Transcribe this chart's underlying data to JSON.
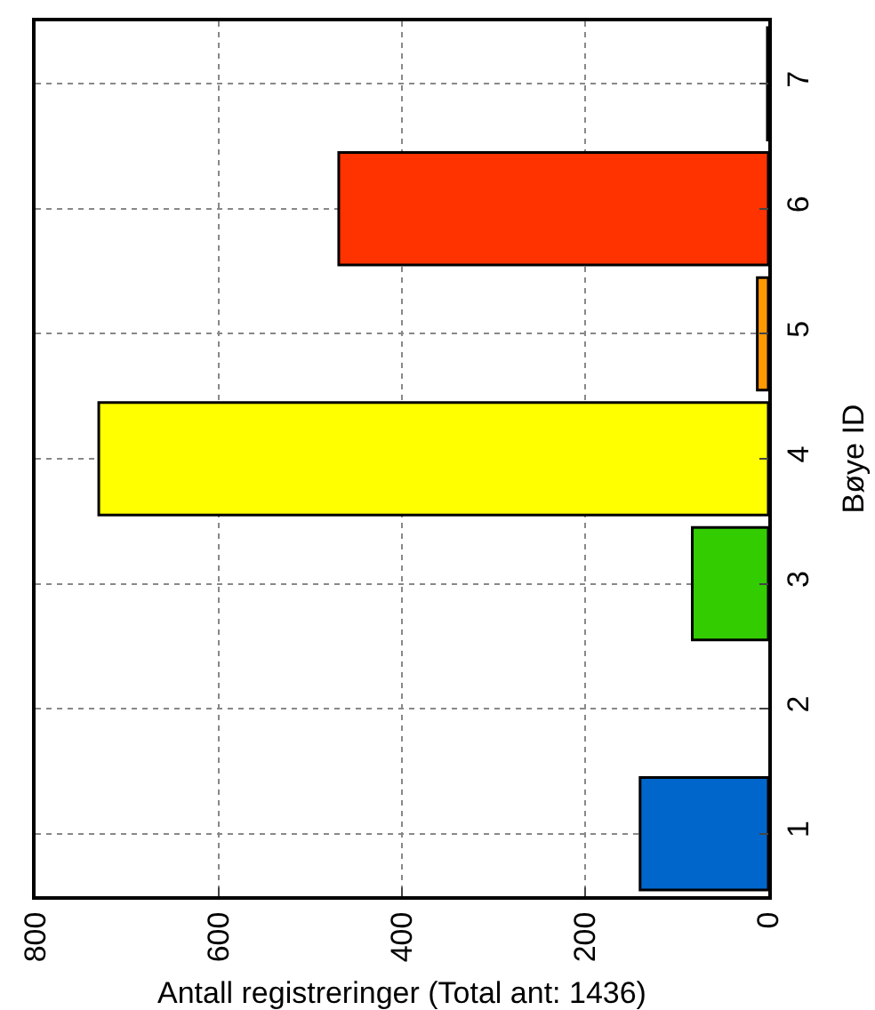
{
  "chart_data": {
    "type": "bar",
    "orientation": "horizontal",
    "xlabel": "Antall registreringer (Total ant: 1436)",
    "ylabel": "Bøye ID",
    "categories": [
      "7",
      "6",
      "5",
      "4",
      "3",
      "2",
      "1"
    ],
    "values": [
      1,
      469,
      12,
      731,
      83,
      null,
      140
    ],
    "colors": [
      "#800000",
      "#ff3300",
      "#ff9900",
      "#ffff00",
      "#33cc00",
      "#0066cc",
      "#0066cc"
    ],
    "xlim": [
      800,
      0
    ],
    "xticks": [
      800,
      600,
      400,
      200,
      0
    ],
    "grid": true
  }
}
